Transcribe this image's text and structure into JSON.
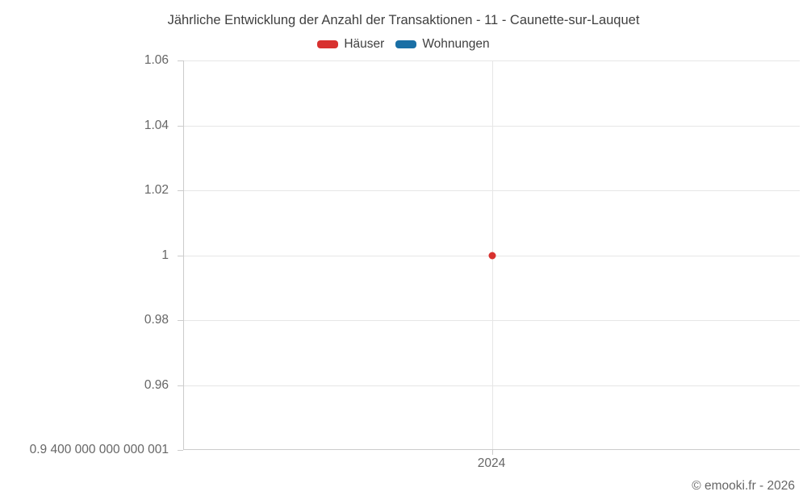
{
  "title": "Jährliche Entwicklung der Anzahl der Transaktionen - 11 - Caunette-sur-Lauquet",
  "footer": "© emooki.fr - 2026",
  "colors": {
    "haeuser_red": "#d8312f",
    "wohnungen_blue": "#1a6fa5",
    "axis_line": "#cccccc",
    "gridline": "#e6e6e6",
    "tick_label": "#666666",
    "title_text": "#404040"
  },
  "chart_data": {
    "type": "scatter",
    "title": "Jährliche Entwicklung der Anzahl der Transaktionen - 11 - Caunette-sur-Lauquet",
    "xlabel": "",
    "ylabel": "",
    "grid": true,
    "legend_position": "top",
    "x_categories": [
      "2024"
    ],
    "y_tick_labels": [
      "1.06",
      "1.04",
      "1.02",
      "1",
      "0.98",
      "0.96",
      "0.9 400 000 000 000 001"
    ],
    "ylim": [
      0.9400000000000001,
      1.06
    ],
    "series": [
      {
        "name": "Häuser",
        "color": "#d8312f",
        "points": [
          {
            "x": "2024",
            "y": 1
          }
        ]
      },
      {
        "name": "Wohnungen",
        "color": "#1a6fa5",
        "points": []
      }
    ]
  }
}
